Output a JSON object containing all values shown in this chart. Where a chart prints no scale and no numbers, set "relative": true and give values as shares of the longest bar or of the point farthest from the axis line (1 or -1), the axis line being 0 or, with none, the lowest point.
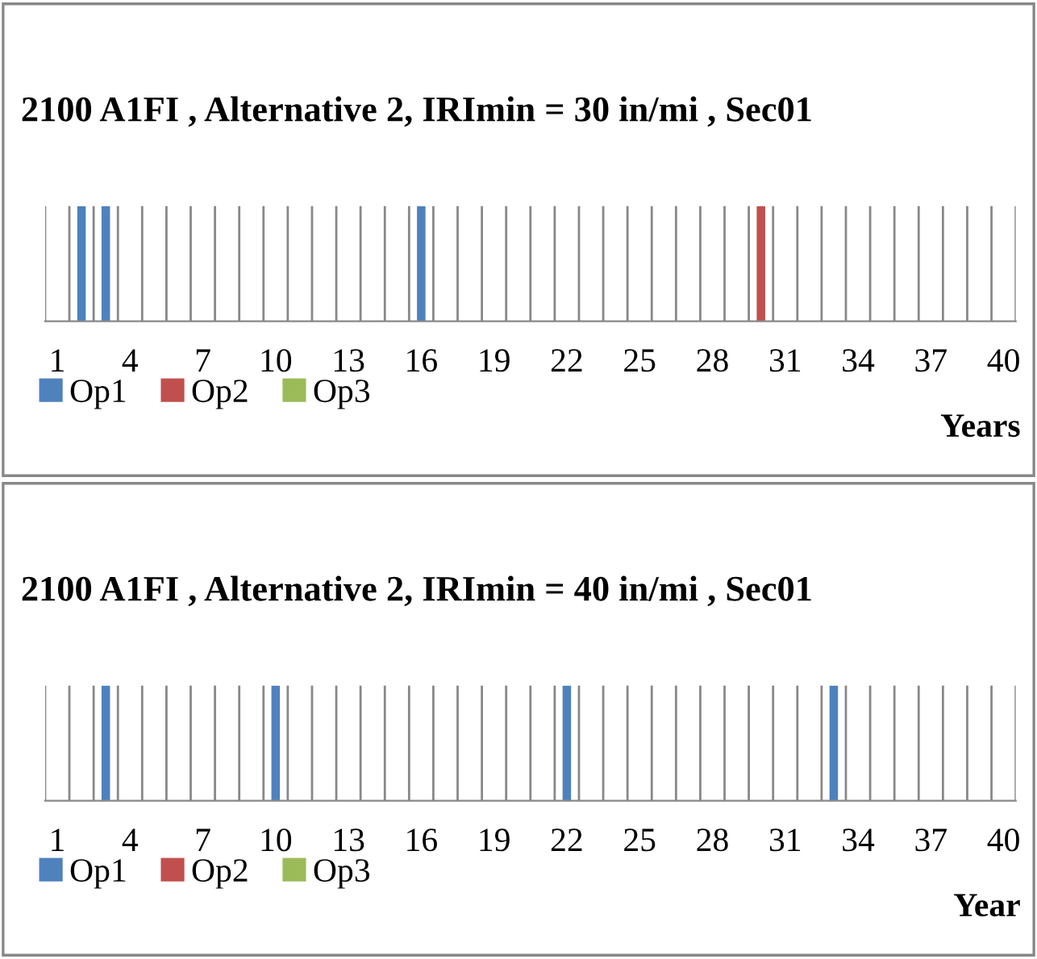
{
  "chart_data": [
    {
      "type": "bar",
      "title": "2100 A1FI , Alternative 2, IRImin = 30 in/mi , Sec01",
      "xlabel": "Years",
      "categories": [
        "1",
        null,
        null,
        "4",
        null,
        null,
        "7",
        null,
        null,
        "10",
        null,
        null,
        "13",
        null,
        null,
        "16",
        null,
        null,
        "19",
        null,
        null,
        "22",
        null,
        null,
        "25",
        null,
        null,
        "28",
        null,
        null,
        "31",
        null,
        null,
        "34",
        null,
        null,
        "37",
        null,
        null,
        "40"
      ],
      "relative": true,
      "grid": "x",
      "legend": "bottom left",
      "tick_labels": "x",
      "series": [
        {
          "name": "Op1",
          "color": "#4f81bd",
          "values": [
            0,
            1,
            1,
            0,
            0,
            0,
            0,
            0,
            0,
            0,
            0,
            0,
            0,
            0,
            0,
            1,
            0,
            0,
            0,
            0,
            0,
            0,
            0,
            0,
            0,
            0,
            0,
            0,
            0,
            0,
            0,
            0,
            0,
            0,
            0,
            0,
            0,
            0,
            0,
            0
          ]
        },
        {
          "name": "Op2",
          "color": "#c0504d",
          "values": [
            0,
            0,
            0,
            0,
            0,
            0,
            0,
            0,
            0,
            0,
            0,
            0,
            0,
            0,
            0,
            0,
            0,
            0,
            0,
            0,
            0,
            0,
            0,
            0,
            0,
            0,
            0,
            0,
            0,
            1,
            0,
            0,
            0,
            0,
            0,
            0,
            0,
            0,
            0,
            0
          ]
        },
        {
          "name": "Op3",
          "color": "#9bbb59",
          "values": [
            0,
            0,
            0,
            0,
            0,
            0,
            0,
            0,
            0,
            0,
            0,
            0,
            0,
            0,
            0,
            0,
            0,
            0,
            0,
            0,
            0,
            0,
            0,
            0,
            0,
            0,
            0,
            0,
            0,
            0,
            0,
            0,
            0,
            0,
            0,
            0,
            0,
            0,
            0,
            0
          ]
        }
      ]
    },
    {
      "type": "bar",
      "title": "2100 A1FI , Alternative 2, IRImin = 40 in/mi , Sec01",
      "xlabel": "Year",
      "categories": [
        "1",
        null,
        null,
        "4",
        null,
        null,
        "7",
        null,
        null,
        "10",
        null,
        null,
        "13",
        null,
        null,
        "16",
        null,
        null,
        "19",
        null,
        null,
        "22",
        null,
        null,
        "25",
        null,
        null,
        "28",
        null,
        null,
        "31",
        null,
        null,
        "34",
        null,
        null,
        "37",
        null,
        null,
        "40"
      ],
      "relative": true,
      "grid": "x",
      "legend": "bottom left",
      "tick_labels": "x",
      "series": [
        {
          "name": "Op1",
          "color": "#4f81bd",
          "values": [
            0,
            0,
            1,
            0,
            0,
            0,
            0,
            0,
            0,
            1,
            0,
            0,
            0,
            0,
            0,
            0,
            0,
            0,
            0,
            0,
            0,
            1,
            0,
            0,
            0,
            0,
            0,
            0,
            0,
            0,
            0,
            0,
            1,
            0,
            0,
            0,
            0,
            0,
            0,
            0
          ]
        },
        {
          "name": "Op2",
          "color": "#c0504d",
          "values": [
            0,
            0,
            0,
            0,
            0,
            0,
            0,
            0,
            0,
            0,
            0,
            0,
            0,
            0,
            0,
            0,
            0,
            0,
            0,
            0,
            0,
            0,
            0,
            0,
            0,
            0,
            0,
            0,
            0,
            0,
            0,
            0,
            0,
            0,
            0,
            0,
            0,
            0,
            0,
            0
          ]
        },
        {
          "name": "Op3",
          "color": "#9bbb59",
          "values": [
            0,
            0,
            0,
            0,
            0,
            0,
            0,
            0,
            0,
            0,
            0,
            0,
            0,
            0,
            0,
            0,
            0,
            0,
            0,
            0,
            0,
            0,
            0,
            0,
            0,
            0,
            0,
            0,
            0,
            0,
            0,
            0,
            0,
            0,
            0,
            0,
            0,
            0,
            0,
            0
          ]
        }
      ]
    }
  ]
}
